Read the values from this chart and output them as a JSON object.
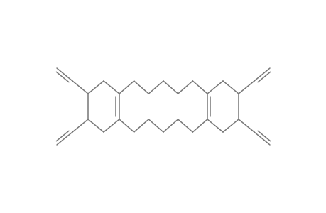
{
  "bg_color": "#ffffff",
  "line_color": "#787878",
  "line_width": 1.1,
  "figsize": [
    4.6,
    3.0
  ],
  "dpi": 100,
  "xlim": [
    0,
    460
  ],
  "ylim": [
    0,
    300
  ]
}
